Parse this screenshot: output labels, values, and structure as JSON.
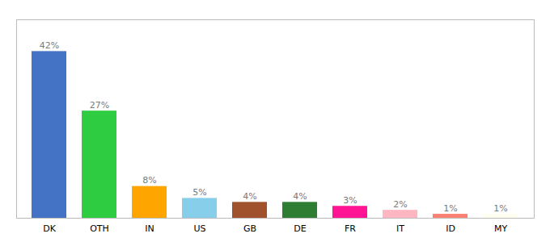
{
  "chart_data": {
    "type": "bar",
    "categories": [
      "DK",
      "OTH",
      "IN",
      "US",
      "GB",
      "DE",
      "FR",
      "IT",
      "ID",
      "MY"
    ],
    "values": [
      42,
      27,
      8,
      5,
      4,
      4,
      3,
      2,
      1,
      1
    ],
    "value_labels": [
      "42%",
      "27%",
      "8%",
      "5%",
      "4%",
      "4%",
      "3%",
      "2%",
      "1%",
      "1%"
    ],
    "colors": [
      "#4472C4",
      "#2ECC40",
      "#FFA500",
      "#87CEEB",
      "#A0522D",
      "#2E7D32",
      "#FF1493",
      "#FFB6C1",
      "#FA8072",
      "#FFFFF0"
    ],
    "ylim": [
      0,
      50
    ],
    "data_labels": true,
    "tick_labels": "x",
    "grid": false
  }
}
